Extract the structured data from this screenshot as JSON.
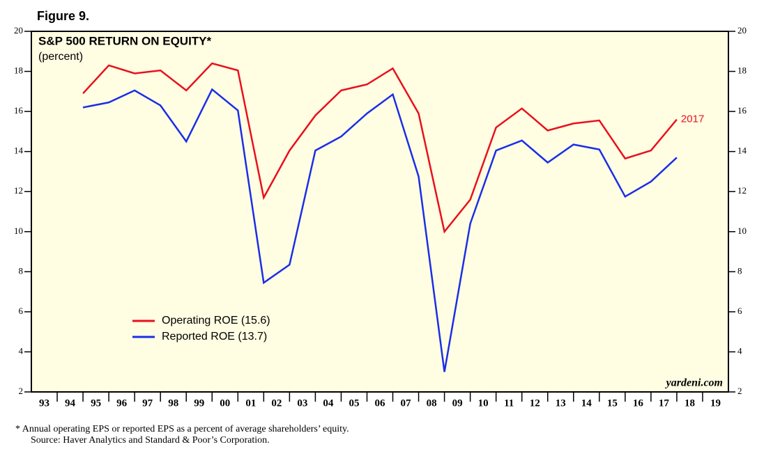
{
  "figure_label": "Figure 9.",
  "chart_data": {
    "type": "line",
    "title": "S&P 500 RETURN ON EQUITY*",
    "subtitle": "(percent)",
    "x": [
      1995,
      1996,
      1997,
      1998,
      1999,
      2000,
      2001,
      2002,
      2003,
      2004,
      2005,
      2006,
      2007,
      2008,
      2009,
      2010,
      2011,
      2012,
      2013,
      2014,
      2015,
      2016,
      2017,
      2018
    ],
    "series": [
      {
        "name": "Operating ROE (15.6)",
        "color": "#e8101e",
        "values": [
          16.9,
          18.3,
          17.9,
          18.05,
          17.05,
          18.4,
          18.05,
          11.7,
          14.05,
          15.8,
          17.05,
          17.35,
          18.15,
          15.9,
          10.0,
          11.6,
          15.2,
          16.15,
          15.05,
          15.4,
          15.55,
          13.65,
          14.05,
          15.6
        ]
      },
      {
        "name": "Reported ROE (13.7)",
        "color": "#1a2ee8",
        "values": [
          16.2,
          16.45,
          17.05,
          16.3,
          14.5,
          17.1,
          16.05,
          7.45,
          8.35,
          14.05,
          14.75,
          15.9,
          16.85,
          12.75,
          3.0,
          10.4,
          14.05,
          14.55,
          13.45,
          14.35,
          14.1,
          11.75,
          12.5,
          13.7
        ]
      }
    ],
    "annotation": "2017",
    "watermark": "yardeni.com",
    "xlim": [
      1993,
      2020
    ],
    "xticks": [
      {
        "value": 1993,
        "label": "93"
      },
      {
        "value": 1994,
        "label": "94"
      },
      {
        "value": 1995,
        "label": "95"
      },
      {
        "value": 1996,
        "label": "96"
      },
      {
        "value": 1997,
        "label": "97"
      },
      {
        "value": 1998,
        "label": "98"
      },
      {
        "value": 1999,
        "label": "99"
      },
      {
        "value": 2000,
        "label": "00"
      },
      {
        "value": 2001,
        "label": "01"
      },
      {
        "value": 2002,
        "label": "02"
      },
      {
        "value": 2003,
        "label": "03"
      },
      {
        "value": 2004,
        "label": "04"
      },
      {
        "value": 2005,
        "label": "05"
      },
      {
        "value": 2006,
        "label": "06"
      },
      {
        "value": 2007,
        "label": "07"
      },
      {
        "value": 2008,
        "label": "08"
      },
      {
        "value": 2009,
        "label": "09"
      },
      {
        "value": 2010,
        "label": "10"
      },
      {
        "value": 2011,
        "label": "11"
      },
      {
        "value": 2012,
        "label": "12"
      },
      {
        "value": 2013,
        "label": "13"
      },
      {
        "value": 2014,
        "label": "14"
      },
      {
        "value": 2015,
        "label": "15"
      },
      {
        "value": 2016,
        "label": "16"
      },
      {
        "value": 2017,
        "label": "17"
      },
      {
        "value": 2018,
        "label": "18"
      },
      {
        "value": 2019,
        "label": "19"
      }
    ],
    "ylim": [
      2,
      20
    ],
    "yticks": [
      2,
      4,
      6,
      8,
      10,
      12,
      14,
      16,
      18,
      20
    ],
    "background": "#fffde2"
  },
  "footnotes": [
    "*  Annual operating EPS or reported EPS as a percent of average shareholders’ equity.",
    "Source: Haver Analytics and Standard & Poor’s Corporation."
  ]
}
